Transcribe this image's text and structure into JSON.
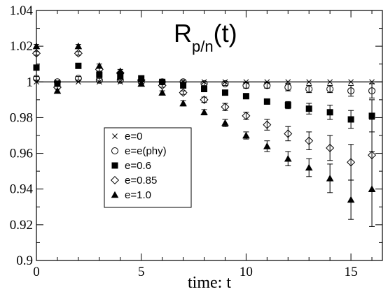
{
  "chart_data": {
    "type": "scatter",
    "title": {
      "main": "R",
      "subscript": "p/n",
      "suffix": "(t)"
    },
    "xlabel": "time: t",
    "ylabel": "",
    "xlim": [
      0,
      16.5
    ],
    "ylim": [
      0.9,
      1.04
    ],
    "x_ticks": [
      0,
      5,
      10,
      15
    ],
    "x_tick_labels": [
      "0",
      "5",
      "10",
      "15"
    ],
    "y_ticks": [
      0.9,
      0.92,
      0.94,
      0.96,
      0.98,
      1.0,
      1.02,
      1.04
    ],
    "y_tick_labels": [
      "0.9",
      "0.92",
      "0.94",
      "0.96",
      "0.98",
      "1",
      "1.02",
      "1.04"
    ],
    "reference_line": 1.0,
    "grid": false,
    "legend_position": "left",
    "series": [
      {
        "name": "e=0",
        "marker": "x",
        "points": [
          [
            0,
            1.0
          ],
          [
            1,
            1.0
          ],
          [
            2,
            1.0
          ],
          [
            3,
            1.0
          ],
          [
            4,
            1.0
          ],
          [
            5,
            1.0
          ],
          [
            6,
            1.0
          ],
          [
            7,
            1.0
          ],
          [
            8,
            1.0
          ],
          [
            9,
            1.0
          ],
          [
            10,
            1.0
          ],
          [
            11,
            1.0
          ],
          [
            12,
            1.0
          ],
          [
            13,
            1.0
          ],
          [
            14,
            1.0
          ],
          [
            15,
            1.0
          ],
          [
            16,
            1.0
          ]
        ],
        "errors": [
          0,
          0,
          0,
          0,
          0,
          0,
          0,
          0,
          0,
          0,
          0,
          0,
          0,
          0,
          0,
          0,
          0
        ]
      },
      {
        "name": "e=e(phy)",
        "marker": "open-circle",
        "points": [
          [
            0,
            1.002
          ],
          [
            1,
            1.0
          ],
          [
            2,
            1.002
          ],
          [
            3,
            1.001
          ],
          [
            4,
            1.001
          ],
          [
            5,
            1.0
          ],
          [
            6,
            1.0
          ],
          [
            7,
            1.0
          ],
          [
            8,
            0.999
          ],
          [
            9,
            0.999
          ],
          [
            10,
            0.998
          ],
          [
            11,
            0.998
          ],
          [
            12,
            0.997
          ],
          [
            13,
            0.996
          ],
          [
            14,
            0.996
          ],
          [
            15,
            0.995
          ],
          [
            16,
            0.995
          ]
        ],
        "errors": [
          0.001,
          0.0005,
          0.001,
          0.001,
          0.001,
          0.001,
          0.001,
          0.001,
          0.001,
          0.001,
          0.0015,
          0.0015,
          0.002,
          0.002,
          0.002,
          0.003,
          0.004
        ]
      },
      {
        "name": "e=0.6",
        "marker": "filled-square",
        "points": [
          [
            0,
            1.008
          ],
          [
            1,
            0.999
          ],
          [
            2,
            1.009
          ],
          [
            3,
            1.004
          ],
          [
            4,
            1.003
          ],
          [
            5,
            1.002
          ],
          [
            6,
            1.0
          ],
          [
            7,
            0.998
          ],
          [
            8,
            0.996
          ],
          [
            9,
            0.994
          ],
          [
            10,
            0.992
          ],
          [
            11,
            0.989
          ],
          [
            12,
            0.987
          ],
          [
            13,
            0.985
          ],
          [
            14,
            0.983
          ],
          [
            15,
            0.979
          ],
          [
            16,
            0.981
          ]
        ],
        "errors": [
          0.001,
          0.001,
          0.001,
          0.001,
          0.001,
          0.001,
          0.001,
          0.001,
          0.001,
          0.001,
          0.0015,
          0.0015,
          0.002,
          0.003,
          0.004,
          0.005,
          0.009
        ]
      },
      {
        "name": "e=0.85",
        "marker": "open-diamond",
        "points": [
          [
            0,
            1.016
          ],
          [
            1,
            0.997
          ],
          [
            2,
            1.016
          ],
          [
            3,
            1.007
          ],
          [
            4,
            1.005
          ],
          [
            5,
            1.001
          ],
          [
            6,
            0.998
          ],
          [
            7,
            0.994
          ],
          [
            8,
            0.99
          ],
          [
            9,
            0.986
          ],
          [
            10,
            0.981
          ],
          [
            11,
            0.976
          ],
          [
            12,
            0.971
          ],
          [
            13,
            0.967
          ],
          [
            14,
            0.963
          ],
          [
            15,
            0.955
          ],
          [
            16,
            0.959
          ]
        ],
        "errors": [
          0.001,
          0.001,
          0.001,
          0.001,
          0.001,
          0.001,
          0.001,
          0.001,
          0.0015,
          0.002,
          0.002,
          0.003,
          0.004,
          0.005,
          0.007,
          0.01,
          0.02
        ]
      },
      {
        "name": "e=1.0",
        "marker": "filled-triangle",
        "points": [
          [
            0,
            1.02
          ],
          [
            1,
            0.995
          ],
          [
            2,
            1.02
          ],
          [
            3,
            1.009
          ],
          [
            4,
            1.006
          ],
          [
            5,
            0.999
          ],
          [
            6,
            0.994
          ],
          [
            7,
            0.988
          ],
          [
            8,
            0.983
          ],
          [
            9,
            0.977
          ],
          [
            10,
            0.97
          ],
          [
            11,
            0.964
          ],
          [
            12,
            0.957
          ],
          [
            13,
            0.952
          ],
          [
            14,
            0.946
          ],
          [
            15,
            0.934
          ],
          [
            16,
            0.94
          ]
        ],
        "errors": [
          0.001,
          0.001,
          0.001,
          0.001,
          0.001,
          0.001,
          0.001,
          0.0015,
          0.0015,
          0.002,
          0.002,
          0.003,
          0.004,
          0.005,
          0.008,
          0.011,
          0.021
        ]
      }
    ]
  }
}
